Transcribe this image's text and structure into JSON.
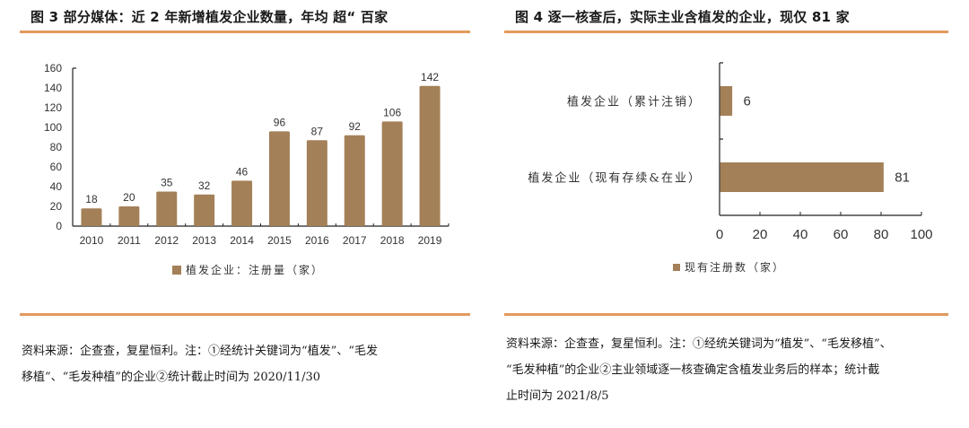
{
  "colors": {
    "bar": "#a48058",
    "rule": "#e39a5c",
    "axis": "#222222",
    "text": "#1a1a1a"
  },
  "left_panel": {
    "title": "图 3 部分媒体：近 2 年新增植发企业数量，年均 超“ 百家",
    "legend_label": "植发企业：注册量（家）",
    "note_line1": "资料来源：企查查，复星恒利。注：①经统计关键词为“植发”、“毛发",
    "note_line2": "移植”、“毛发种植”的企业②统计截止时间为 2020/11/30"
  },
  "right_panel": {
    "title": "图 4 逐一核查后，实际主业含植发的企业，现仅 81 家",
    "legend_label": "现有注册数（家）",
    "note_line1": "资料来源：企查查，复星恒利。注：①经统关键词为“植发”、“毛发移植”、",
    "note_line2": "“毛发种植”的企业②主业领域逐一核查确定含植发业务后的样本；统计截",
    "note_line3": "止时间为 2021/8/5"
  },
  "chart_data": [
    {
      "type": "bar",
      "title": "图 3 部分媒体：近 2 年新增植发企业数量，年均 超“ 百家",
      "categories": [
        "2010",
        "2011",
        "2012",
        "2013",
        "2014",
        "2015",
        "2016",
        "2017",
        "2018",
        "2019"
      ],
      "series": [
        {
          "name": "植发企业：注册量（家）",
          "values": [
            18,
            20,
            35,
            32,
            46,
            96,
            87,
            92,
            106,
            142
          ]
        }
      ],
      "xlabel": "",
      "ylabel": "",
      "ylim": [
        0,
        160
      ],
      "yticks": [
        0,
        20,
        40,
        60,
        80,
        100,
        120,
        140,
        160
      ],
      "grid": false,
      "legend_position": "bottom",
      "data_labels": true
    },
    {
      "type": "bar",
      "orientation": "horizontal",
      "title": "图 4 逐一核查后，实际主业含植发的企业，现仅 81 家",
      "categories": [
        "植发企业（累计注销）",
        "植发企业（现有存续&在业）"
      ],
      "series": [
        {
          "name": "现有注册数（家）",
          "values": [
            6,
            81
          ]
        }
      ],
      "xlabel": "",
      "ylabel": "",
      "xlim": [
        0,
        100
      ],
      "xticks": [
        0,
        20,
        40,
        60,
        80,
        100
      ],
      "grid": false,
      "legend_position": "bottom",
      "data_labels": true
    }
  ]
}
